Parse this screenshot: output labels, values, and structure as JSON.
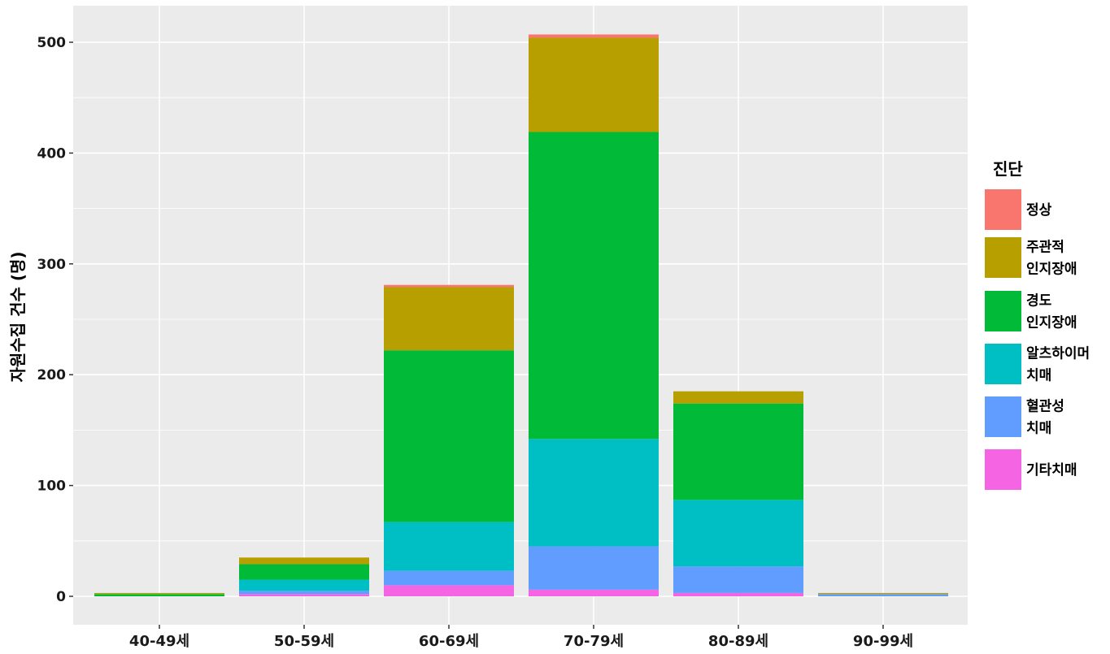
{
  "chart_data": {
    "type": "bar",
    "stacked": true,
    "title": "",
    "xlabel": "",
    "ylabel": "자원수집 건수 (명)",
    "ylim": [
      -23,
      532
    ],
    "yticks": [
      0,
      100,
      200,
      300,
      400,
      500
    ],
    "grid": true,
    "legend_position": "right",
    "legend_title": "진단",
    "categories": [
      "40-49세",
      "50-59세",
      "60-69세",
      "70-79세",
      "80-89세",
      "90-99세"
    ],
    "series": [
      {
        "name": "정상",
        "label_lines": [
          "정상"
        ],
        "color": "#F8766D",
        "values": [
          0,
          0,
          2,
          3,
          0,
          0
        ]
      },
      {
        "name": "주관적 인지장애",
        "label_lines": [
          "주관적",
          "인지장애"
        ],
        "color": "#B79F00",
        "values": [
          1,
          6,
          57,
          85,
          11,
          1
        ]
      },
      {
        "name": "경도 인지장애",
        "label_lines": [
          "경도",
          "인지장애"
        ],
        "color": "#00BA38",
        "values": [
          2,
          14,
          155,
          277,
          87,
          0
        ]
      },
      {
        "name": "알츠하이머 치매",
        "label_lines": [
          "알츠하이머",
          "치매"
        ],
        "color": "#00BFC4",
        "values": [
          0,
          10,
          44,
          97,
          60,
          0
        ]
      },
      {
        "name": "혈관성 치매",
        "label_lines": [
          "혈관성",
          "치매"
        ],
        "color": "#619CFF",
        "values": [
          0,
          3,
          13,
          39,
          24,
          2
        ]
      },
      {
        "name": "기타치매",
        "label_lines": [
          "기타치매"
        ],
        "color": "#F564E3",
        "values": [
          0,
          2,
          10,
          6,
          3,
          0
        ]
      }
    ]
  }
}
